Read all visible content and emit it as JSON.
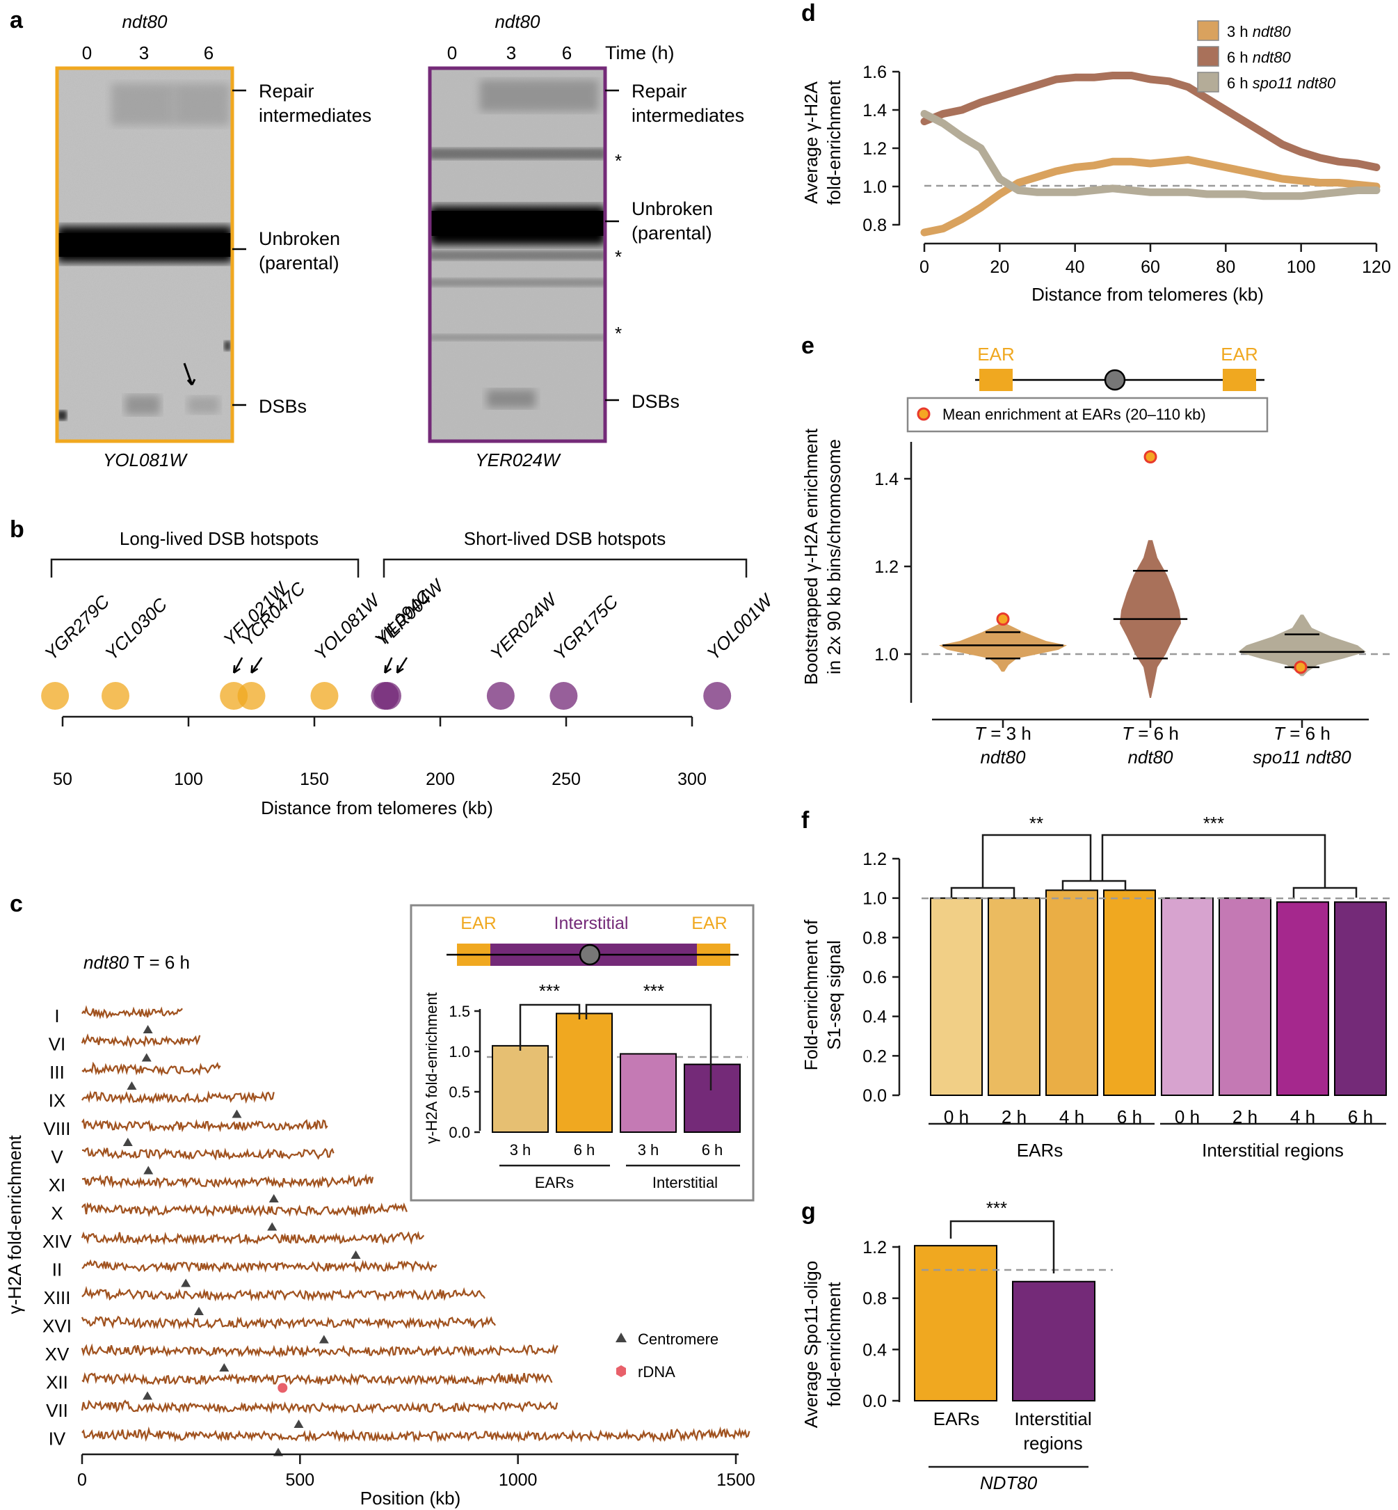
{
  "colors": {
    "ear": "#F0A820",
    "interstitial": "#742A78",
    "ndt80_3h": "#D9A25E",
    "ndt80_6h": "#A9715A",
    "spo11_6h": "#B4AC98",
    "track": "#A0521F",
    "dashed": "#9a9a9a",
    "gel_frame_a1": "#F0A820",
    "gel_frame_a2": "#742A78",
    "red_point": "#E8392C"
  },
  "panel_a": {
    "label": "a",
    "gel1": {
      "strain": "ndt80",
      "lanes": [
        "0",
        "3",
        "6"
      ],
      "gene": "YOL081W",
      "bands": {
        "repair": "Repair",
        "repair2": "intermediates",
        "unbroken": "Unbroken",
        "parental": "(parental)",
        "dsbs": "DSBs"
      }
    },
    "gel2": {
      "strain": "ndt80",
      "lanes": [
        "0",
        "3",
        "6"
      ],
      "time_label": "Time (h)",
      "gene": "YER024W",
      "bands": {
        "repair": "Repair",
        "repair2": "intermediates",
        "unbroken": "Unbroken",
        "parental": "(parental)",
        "dsbs": "DSBs"
      },
      "asterisk": "*"
    }
  },
  "panel_b": {
    "label": "b",
    "long_lived": "Long-lived DSB hotspots",
    "short_lived": "Short-lived DSB hotspots",
    "xlabel": "Distance from telomeres (kb)",
    "ticks": [
      "50",
      "100",
      "150",
      "200",
      "250",
      "300"
    ],
    "hotspots": [
      {
        "name": "YGR279C",
        "kb": 47,
        "group": "long"
      },
      {
        "name": "YCL030C",
        "kb": 71,
        "group": "long"
      },
      {
        "name": "YFL021W",
        "kb": 118,
        "group": "long"
      },
      {
        "name": "YCR047C",
        "kb": 125,
        "group": "long"
      },
      {
        "name": "YOL081W",
        "kb": 154,
        "group": "long"
      },
      {
        "name": "YIL094C",
        "kb": 178,
        "group": "short"
      },
      {
        "name": "YER004W",
        "kb": 179,
        "group": "short"
      },
      {
        "name": "YER024W",
        "kb": 224,
        "group": "short"
      },
      {
        "name": "YGR175C",
        "kb": 249,
        "group": "short"
      },
      {
        "name": "YOL001W",
        "kb": 310,
        "group": "short"
      }
    ]
  },
  "panel_c": {
    "label": "c",
    "title_italic": "ndt80",
    "title_rest": " T = 6 h",
    "ylabel": "γ-H2A fold-enrichment",
    "xlabel": "Position (kb)",
    "ticks": [
      "0",
      "500",
      "1000",
      "1500"
    ],
    "legend_centromere": "Centromere",
    "legend_rdna": "rDNA",
    "chromosomes": [
      {
        "name": "I",
        "length": 230,
        "cen": 151
      },
      {
        "name": "VI",
        "length": 270,
        "cen": 148
      },
      {
        "name": "III",
        "length": 317,
        "cen": 114
      },
      {
        "name": "IX",
        "length": 440,
        "cen": 355
      },
      {
        "name": "VIII",
        "length": 563,
        "cen": 105
      },
      {
        "name": "V",
        "length": 577,
        "cen": 152
      },
      {
        "name": "XI",
        "length": 667,
        "cen": 440
      },
      {
        "name": "X",
        "length": 745,
        "cen": 436
      },
      {
        "name": "XIV",
        "length": 784,
        "cen": 628
      },
      {
        "name": "II",
        "length": 813,
        "cen": 238
      },
      {
        "name": "XIII",
        "length": 924,
        "cen": 268
      },
      {
        "name": "XVI",
        "length": 948,
        "cen": 555
      },
      {
        "name": "XV",
        "length": 1091,
        "cen": 326
      },
      {
        "name": "XII",
        "length": 1078,
        "cen": 150
      },
      {
        "name": "VII",
        "length": 1090,
        "cen": 497
      },
      {
        "name": "IV",
        "length": 1531,
        "cen": 450
      }
    ],
    "rdna_chrom": "XII",
    "rdna_kb": 460,
    "inset": {
      "ear_label": "EAR",
      "interstitial_label": "Interstitial",
      "ylabel": "γ-H2A fold-enrichment",
      "yticks": [
        "0.0",
        "0.5",
        "1.0",
        "1.5"
      ],
      "bars": [
        {
          "label": "3 h",
          "group": "EARs",
          "value": 1.07,
          "color": "#E6BF72"
        },
        {
          "label": "6 h",
          "group": "EARs",
          "value": 1.47,
          "color": "#F0A820"
        },
        {
          "label": "3 h",
          "group": "Interstitial",
          "value": 0.97,
          "color": "#C47AB4"
        },
        {
          "label": "6 h",
          "group": "Interstitial",
          "value": 0.84,
          "color": "#742A78"
        }
      ],
      "group_labels": [
        "EARs",
        "Interstitial"
      ],
      "sig": "***"
    }
  },
  "panel_d": {
    "label": "d",
    "ylabel1": "Average γ-H2A",
    "ylabel2": "fold-enrichment",
    "xlabel": "Distance from telomeres (kb)",
    "yticks": [
      "0.8",
      "1.0",
      "1.2",
      "1.4",
      "1.6"
    ],
    "xticks": [
      "0",
      "20",
      "40",
      "60",
      "80",
      "100",
      "120"
    ],
    "legend": [
      {
        "time": "3 h ",
        "strain": "ndt80",
        "color": "#D9A25E"
      },
      {
        "time": "6 h ",
        "strain": "ndt80",
        "color": "#A9715A"
      },
      {
        "time": "6 h ",
        "strain": "spo11 ndt80",
        "color": "#B4AC98"
      }
    ]
  },
  "chart_data": [
    {
      "type": "line",
      "title": "",
      "xlabel": "Distance from telomeres (kb)",
      "ylabel": "Average γ-H2A fold-enrichment",
      "xlim": [
        0,
        120
      ],
      "ylim": [
        0.75,
        1.65
      ],
      "x": [
        0,
        5,
        10,
        15,
        20,
        25,
        30,
        35,
        40,
        45,
        50,
        55,
        60,
        65,
        70,
        75,
        80,
        85,
        90,
        95,
        100,
        105,
        110,
        115,
        120
      ],
      "series": [
        {
          "name": "3 h ndt80",
          "values": [
            0.76,
            0.78,
            0.83,
            0.89,
            0.96,
            1.02,
            1.05,
            1.08,
            1.1,
            1.11,
            1.13,
            1.13,
            1.12,
            1.13,
            1.14,
            1.12,
            1.1,
            1.08,
            1.06,
            1.04,
            1.03,
            1.02,
            1.02,
            1.01,
            1.0
          ]
        },
        {
          "name": "6 h ndt80",
          "values": [
            1.34,
            1.38,
            1.4,
            1.44,
            1.47,
            1.5,
            1.53,
            1.56,
            1.57,
            1.57,
            1.58,
            1.58,
            1.56,
            1.55,
            1.52,
            1.46,
            1.4,
            1.34,
            1.28,
            1.22,
            1.18,
            1.15,
            1.13,
            1.12,
            1.1
          ]
        },
        {
          "name": "6 h spo11 ndt80",
          "values": [
            1.38,
            1.33,
            1.26,
            1.2,
            1.04,
            0.98,
            0.97,
            0.97,
            0.97,
            0.98,
            0.99,
            0.98,
            0.97,
            0.97,
            0.97,
            0.96,
            0.96,
            0.96,
            0.95,
            0.95,
            0.95,
            0.96,
            0.97,
            0.98,
            0.98
          ]
        }
      ]
    },
    {
      "type": "violin",
      "title": "",
      "ylabel": "Bootstrapped γ-H2A enrichment in 2x 90 kb bins/chromosome",
      "ylim": [
        0.9,
        1.55
      ],
      "categories": [
        "T = 3 h ndt80",
        "T = 6 h ndt80",
        "T = 6 h spo11 ndt80"
      ],
      "median": [
        1.02,
        1.08,
        1.005
      ],
      "q_low": [
        0.99,
        0.99,
        0.97
      ],
      "q_high": [
        1.05,
        1.19,
        1.045
      ],
      "mean_at_ears": [
        1.08,
        1.45,
        0.97
      ]
    },
    {
      "type": "bar",
      "ylabel": "Fold-enrichment of S1-seq signal",
      "ylim": [
        0,
        1.2
      ],
      "categories": [
        "0 h",
        "2 h",
        "4 h",
        "6 h",
        "0 h",
        "2 h",
        "4 h",
        "6 h"
      ],
      "groups": [
        "EARs",
        "EARs",
        "EARs",
        "EARs",
        "Interstitial regions",
        "Interstitial regions",
        "Interstitial regions",
        "Interstitial regions"
      ],
      "values": [
        1.0,
        1.0,
        1.04,
        1.04,
        1.0,
        1.0,
        0.98,
        0.98
      ]
    },
    {
      "type": "bar",
      "ylabel": "Average Spo11-oligo fold-enrichment",
      "ylim": [
        0,
        1.3
      ],
      "categories": [
        "EARs",
        "Interstitial regions"
      ],
      "values": [
        1.21,
        0.93
      ],
      "group": "NDT80"
    }
  ],
  "panel_e": {
    "label": "e",
    "ear_label": "EAR",
    "legend": "Mean enrichment at EARs (20–110 kb)",
    "ylabel1": "Bootstrapped γ-H2A enrichment",
    "ylabel2": "in 2x 90 kb bins/chromosome",
    "yticks": [
      "1.0",
      "1.2",
      "1.4"
    ],
    "cats": [
      {
        "t": "T = 3 h",
        "s": "ndt80"
      },
      {
        "t": "T = 6 h",
        "s": "ndt80"
      },
      {
        "t": "T = 6 h",
        "s": "spo11 ndt80"
      }
    ]
  },
  "panel_f": {
    "label": "f",
    "ylabel1": "Fold-enrichment of",
    "ylabel2": "S1-seq signal",
    "yticks": [
      "0.0",
      "0.2",
      "0.4",
      "0.6",
      "0.8",
      "1.0",
      "1.2"
    ],
    "bar_labels": [
      "0 h",
      "2 h",
      "4 h",
      "6 h",
      "0 h",
      "2 h",
      "4 h",
      "6 h"
    ],
    "bar_colors": [
      "#F1CF86",
      "#EBBB60",
      "#EAAE45",
      "#F0A820",
      "#D7A3CF",
      "#C479B4",
      "#A5288D",
      "#742A78"
    ],
    "groups": [
      "EARs",
      "Interstitial regions"
    ],
    "sig1": "**",
    "sig2": "***"
  },
  "panel_g": {
    "label": "g",
    "ylabel1": "Average Spo11-oligo",
    "ylabel2": "fold-enrichment",
    "yticks": [
      "0.0",
      "0.4",
      "0.8",
      "1.2"
    ],
    "cat1": "EARs",
    "cat2a": "Interstitial",
    "cat2b": "regions",
    "group": "NDT80",
    "sig": "***"
  }
}
